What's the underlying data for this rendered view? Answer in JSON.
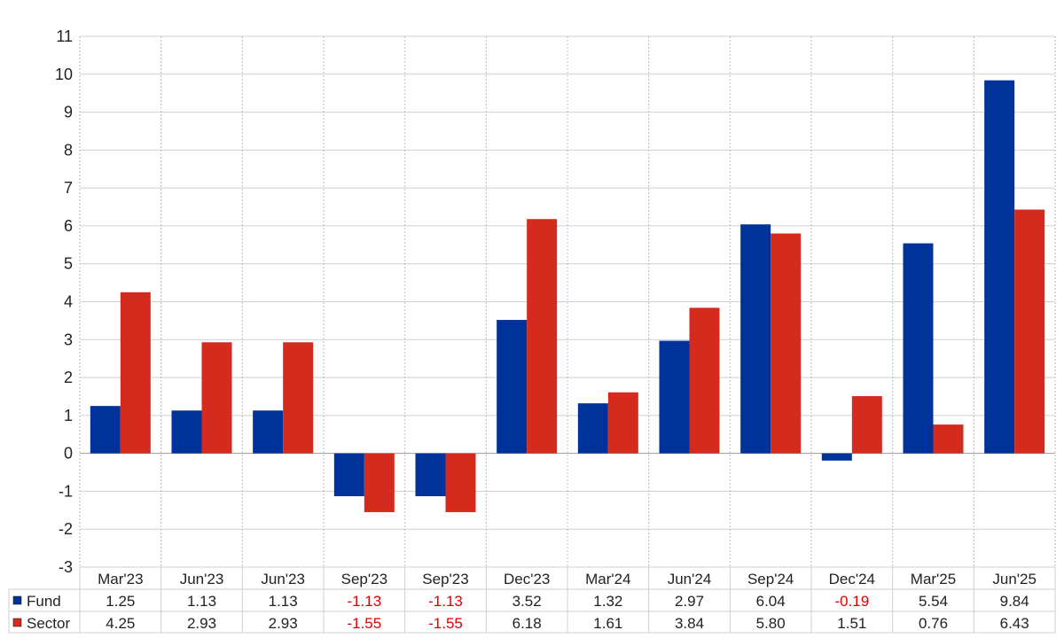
{
  "chart_data": {
    "type": "bar",
    "categories": [
      "Mar'23",
      "Jun'23",
      "Jun'23",
      "Sep'23",
      "Sep'23",
      "Dec'23",
      "Mar'24",
      "Jun'24",
      "Sep'24",
      "Dec'24",
      "Mar'25",
      "Jun'25"
    ],
    "series": [
      {
        "name": "Fund",
        "color": "#003399",
        "values": [
          1.25,
          1.13,
          1.13,
          -1.13,
          -1.13,
          3.52,
          1.32,
          2.97,
          6.04,
          -0.19,
          5.54,
          9.84
        ],
        "labels": [
          "1.25",
          "1.13",
          "1.13",
          "-1.13",
          "-1.13",
          "3.52",
          "1.32",
          "2.97",
          "6.04",
          "-0.19",
          "5.54",
          "9.84"
        ]
      },
      {
        "name": "Sector",
        "color": "#d52b1e",
        "values": [
          4.25,
          2.93,
          2.93,
          -1.55,
          -1.55,
          6.18,
          1.61,
          3.84,
          5.8,
          1.51,
          0.76,
          6.43
        ],
        "labels": [
          "4.25",
          "2.93",
          "2.93",
          "-1.55",
          "-1.55",
          "6.18",
          "1.61",
          "3.84",
          "5.80",
          "1.51",
          "0.76",
          "6.43"
        ]
      }
    ],
    "ylim": [
      -3,
      11
    ],
    "yticks": [
      11,
      10,
      9,
      8,
      7,
      6,
      5,
      4,
      3,
      2,
      1,
      0,
      -1,
      -2,
      -3
    ],
    "grid": true,
    "negative_color": "#e00000",
    "legend": "table-bottom"
  }
}
